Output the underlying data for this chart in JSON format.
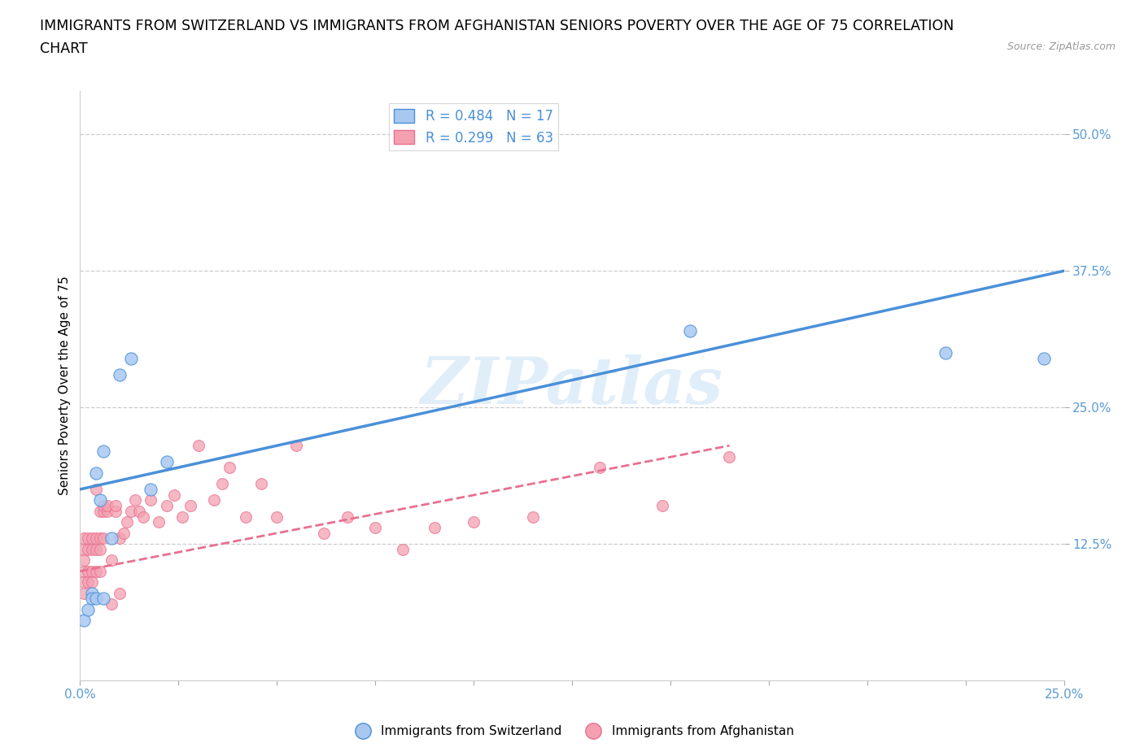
{
  "title_line1": "IMMIGRANTS FROM SWITZERLAND VS IMMIGRANTS FROM AFGHANISTAN SENIORS POVERTY OVER THE AGE OF 75 CORRELATION",
  "title_line2": "CHART",
  "source": "Source: ZipAtlas.com",
  "watermark": "ZIPatlas",
  "ylabel": "Seniors Poverty Over the Age of 75",
  "xlim": [
    0.0,
    0.25
  ],
  "ylim": [
    0.0,
    0.54
  ],
  "xticks": [
    0.0,
    0.025,
    0.05,
    0.075,
    0.1,
    0.125,
    0.15,
    0.175,
    0.2,
    0.225,
    0.25
  ],
  "yticks": [
    0.125,
    0.25,
    0.375,
    0.5
  ],
  "ytick_labels": [
    "12.5%",
    "25.0%",
    "37.5%",
    "50.0%"
  ],
  "xtick_labels": [
    "0.0%",
    "",
    "",
    "",
    "",
    "",
    "",
    "",
    "",
    "",
    "25.0%"
  ],
  "legend_r1": "R = 0.484",
  "legend_n1": "N = 17",
  "legend_r2": "R = 0.299",
  "legend_n2": "N = 63",
  "color_swiss": "#a8c8f0",
  "color_afghan": "#f4a0b0",
  "color_swiss_line": "#4a90d9",
  "color_afghan_line": "#e87090",
  "color_tick_label": "#5b9bd5",
  "swiss_x": [
    0.001,
    0.002,
    0.003,
    0.003,
    0.004,
    0.004,
    0.005,
    0.006,
    0.006,
    0.008,
    0.01,
    0.013,
    0.018,
    0.022,
    0.155,
    0.22,
    0.245
  ],
  "swiss_y": [
    0.055,
    0.065,
    0.08,
    0.075,
    0.075,
    0.19,
    0.165,
    0.21,
    0.075,
    0.13,
    0.28,
    0.295,
    0.175,
    0.2,
    0.32,
    0.3,
    0.295
  ],
  "afghan_x": [
    0.001,
    0.001,
    0.001,
    0.001,
    0.001,
    0.001,
    0.002,
    0.002,
    0.002,
    0.002,
    0.003,
    0.003,
    0.003,
    0.003,
    0.004,
    0.004,
    0.004,
    0.004,
    0.005,
    0.005,
    0.005,
    0.005,
    0.006,
    0.006,
    0.006,
    0.007,
    0.007,
    0.008,
    0.008,
    0.009,
    0.009,
    0.01,
    0.01,
    0.011,
    0.012,
    0.013,
    0.014,
    0.015,
    0.016,
    0.018,
    0.02,
    0.022,
    0.024,
    0.026,
    0.028,
    0.03,
    0.034,
    0.036,
    0.038,
    0.042,
    0.046,
    0.05,
    0.055,
    0.062,
    0.068,
    0.075,
    0.082,
    0.09,
    0.1,
    0.115,
    0.132,
    0.148,
    0.165
  ],
  "afghan_y": [
    0.13,
    0.12,
    0.11,
    0.1,
    0.09,
    0.08,
    0.13,
    0.12,
    0.1,
    0.09,
    0.13,
    0.12,
    0.1,
    0.09,
    0.13,
    0.12,
    0.1,
    0.175,
    0.13,
    0.12,
    0.1,
    0.155,
    0.13,
    0.155,
    0.16,
    0.155,
    0.16,
    0.07,
    0.11,
    0.155,
    0.16,
    0.08,
    0.13,
    0.135,
    0.145,
    0.155,
    0.165,
    0.155,
    0.15,
    0.165,
    0.145,
    0.16,
    0.17,
    0.15,
    0.16,
    0.215,
    0.165,
    0.18,
    0.195,
    0.15,
    0.18,
    0.15,
    0.215,
    0.135,
    0.15,
    0.14,
    0.12,
    0.14,
    0.145,
    0.15,
    0.195,
    0.16,
    0.205
  ],
  "swiss_trend_x": [
    0.0,
    0.25
  ],
  "swiss_trend_y": [
    0.175,
    0.375
  ],
  "afghan_trend_x": [
    0.0,
    0.165
  ],
  "afghan_trend_y": [
    0.1,
    0.215
  ],
  "background_color": "#ffffff",
  "grid_color": "#cccccc",
  "title_fontsize": 12.5,
  "axis_label_fontsize": 11,
  "tick_fontsize": 11
}
